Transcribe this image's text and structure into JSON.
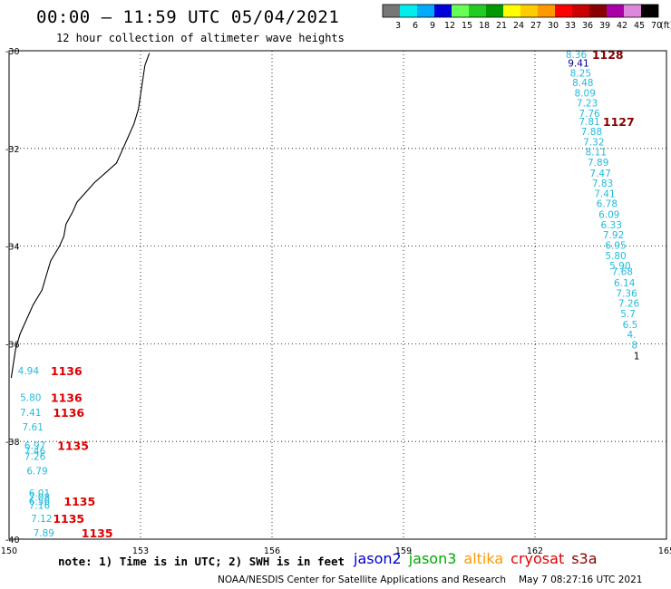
{
  "header": {
    "title": "00:00 – 11:59 UTC 05/04/2021",
    "subtitle": "12 hour collection of altimeter wave heights"
  },
  "colorbar": {
    "unit_label": "(ft)",
    "bins": [
      {
        "label": "3",
        "color": "#777777"
      },
      {
        "label": "6",
        "color": "#00eeee"
      },
      {
        "label": "9",
        "color": "#00aaff"
      },
      {
        "label": "12",
        "color": "#0000dd"
      },
      {
        "label": "15",
        "color": "#66ff55"
      },
      {
        "label": "18",
        "color": "#22cc22"
      },
      {
        "label": "21",
        "color": "#009900"
      },
      {
        "label": "24",
        "color": "#ffff00"
      },
      {
        "label": "27",
        "color": "#ffcc00"
      },
      {
        "label": "30",
        "color": "#ff9900"
      },
      {
        "label": "33",
        "color": "#ff0000"
      },
      {
        "label": "36",
        "color": "#cc0000"
      },
      {
        "label": "39",
        "color": "#880000"
      },
      {
        "label": "42",
        "color": "#aa00aa"
      },
      {
        "label": "45",
        "color": "#dd88dd"
      },
      {
        "label": "70",
        "color": "#000000"
      }
    ]
  },
  "axes": {
    "lon_ticks": [
      "150",
      "153",
      "156",
      "159",
      "162",
      "165"
    ],
    "lat_ticks": [
      "-30",
      "-32",
      "-34",
      "-36",
      "-38",
      "-40"
    ],
    "lon_range": [
      150,
      165
    ],
    "lat_range": [
      -30,
      -40
    ]
  },
  "tracks": {
    "east": {
      "color": "#22bbdd",
      "points": [
        {
          "lat": -30.07,
          "lon": 162.7,
          "v": "8.36"
        },
        {
          "lat": -30.25,
          "lon": 162.75,
          "v": "9.41",
          "color": "#000099"
        },
        {
          "lat": -30.45,
          "lon": 162.8,
          "v": "8.25"
        },
        {
          "lat": -30.65,
          "lon": 162.85,
          "v": "8.48"
        },
        {
          "lat": -30.86,
          "lon": 162.9,
          "v": "8.09"
        },
        {
          "lat": -31.07,
          "lon": 162.95,
          "v": "7.23"
        },
        {
          "lat": -31.28,
          "lon": 163.0,
          "v": "7.76"
        },
        {
          "lat": -31.45,
          "lon": 163.0,
          "v": "7.81"
        },
        {
          "lat": -31.65,
          "lon": 163.05,
          "v": "7.88"
        },
        {
          "lat": -31.86,
          "lon": 163.1,
          "v": "7.32"
        },
        {
          "lat": -32.07,
          "lon": 163.15,
          "v": "8.11"
        },
        {
          "lat": -32.28,
          "lon": 163.2,
          "v": "7.89"
        },
        {
          "lat": -32.5,
          "lon": 163.25,
          "v": "7.47"
        },
        {
          "lat": -32.71,
          "lon": 163.3,
          "v": "7.83"
        },
        {
          "lat": -32.92,
          "lon": 163.35,
          "v": "7.41"
        },
        {
          "lat": -33.13,
          "lon": 163.4,
          "v": "6.78"
        },
        {
          "lat": -33.35,
          "lon": 163.45,
          "v": "6.09"
        },
        {
          "lat": -33.56,
          "lon": 163.5,
          "v": "6.33"
        },
        {
          "lat": -33.77,
          "lon": 163.55,
          "v": "7.92"
        },
        {
          "lat": -33.98,
          "lon": 163.6,
          "v": "6.95"
        },
        {
          "lat": -34.19,
          "lon": 163.6,
          "v": "5.80"
        },
        {
          "lat": -34.4,
          "lon": 163.7,
          "v": "5.90"
        },
        {
          "lat": -34.52,
          "lon": 163.75,
          "v": "7.68"
        },
        {
          "lat": -34.75,
          "lon": 163.8,
          "v": "6.14"
        },
        {
          "lat": -34.96,
          "lon": 163.85,
          "v": "7.36"
        },
        {
          "lat": -35.17,
          "lon": 163.9,
          "v": "7.26"
        },
        {
          "lat": -35.38,
          "lon": 163.95,
          "v": "5.7"
        },
        {
          "lat": -35.6,
          "lon": 164.0,
          "v": "6.5"
        },
        {
          "lat": -35.81,
          "lon": 164.1,
          "v": "4."
        },
        {
          "lat": -36.02,
          "lon": 164.2,
          "v": "8"
        },
        {
          "lat": -36.24,
          "lon": 164.25,
          "v": "1",
          "color": "#000000"
        }
      ],
      "time_labels": [
        {
          "lat": -30.07,
          "lon": 163.3,
          "v": "1128",
          "color": "#880000"
        },
        {
          "lat": -31.45,
          "lon": 163.55,
          "v": "1127",
          "color": "#880000"
        }
      ]
    },
    "west": {
      "color": "#22bbdd",
      "points": [
        {
          "lat": -36.55,
          "lon": 150.2,
          "v": "4.94"
        },
        {
          "lat": -37.1,
          "lon": 150.25,
          "v": "5.80"
        },
        {
          "lat": -37.4,
          "lon": 150.25,
          "v": "7.41"
        },
        {
          "lat": -37.7,
          "lon": 150.3,
          "v": "7.61"
        },
        {
          "lat": -38.08,
          "lon": 150.35,
          "v": "6.97"
        },
        {
          "lat": -38.19,
          "lon": 150.35,
          "v": "7.46"
        },
        {
          "lat": -38.3,
          "lon": 150.35,
          "v": "7.26"
        },
        {
          "lat": -38.6,
          "lon": 150.4,
          "v": "6.79"
        },
        {
          "lat": -39.05,
          "lon": 150.45,
          "v": "6.01"
        },
        {
          "lat": -39.14,
          "lon": 150.45,
          "v": "7.08"
        },
        {
          "lat": -39.22,
          "lon": 150.45,
          "v": "6.56"
        },
        {
          "lat": -39.3,
          "lon": 150.45,
          "v": "7.16"
        },
        {
          "lat": -39.57,
          "lon": 150.5,
          "v": "7.12"
        },
        {
          "lat": -39.87,
          "lon": 150.55,
          "v": "7.89"
        }
      ],
      "time_labels": [
        {
          "lat": -36.55,
          "lon": 150.95,
          "v": "1136",
          "color": "#dd0000"
        },
        {
          "lat": -37.1,
          "lon": 150.95,
          "v": "1136",
          "color": "#dd0000"
        },
        {
          "lat": -37.4,
          "lon": 151.0,
          "v": "1136",
          "color": "#dd0000"
        },
        {
          "lat": -38.08,
          "lon": 151.1,
          "v": "1135",
          "color": "#dd0000"
        },
        {
          "lat": -39.22,
          "lon": 151.25,
          "v": "1135",
          "color": "#dd0000"
        },
        {
          "lat": -39.57,
          "lon": 151.0,
          "v": "1135",
          "color": "#dd0000"
        },
        {
          "lat": -39.87,
          "lon": 151.65,
          "v": "1135",
          "color": "#dd0000"
        }
      ]
    }
  },
  "coastline": [
    [
      -30.05,
      153.2
    ],
    [
      -30.3,
      153.1
    ],
    [
      -30.6,
      153.05
    ],
    [
      -30.9,
      153.0
    ],
    [
      -31.2,
      152.95
    ],
    [
      -31.5,
      152.85
    ],
    [
      -31.8,
      152.7
    ],
    [
      -32.1,
      152.55
    ],
    [
      -32.3,
      152.45
    ],
    [
      -32.5,
      152.2
    ],
    [
      -32.7,
      151.95
    ],
    [
      -32.9,
      151.75
    ],
    [
      -33.1,
      151.55
    ],
    [
      -33.3,
      151.45
    ],
    [
      -33.55,
      151.3
    ],
    [
      -33.8,
      151.25
    ],
    [
      -34.0,
      151.15
    ],
    [
      -34.3,
      150.95
    ],
    [
      -34.6,
      150.85
    ],
    [
      -34.9,
      150.75
    ],
    [
      -35.2,
      150.55
    ],
    [
      -35.5,
      150.4
    ],
    [
      -35.8,
      150.25
    ],
    [
      -36.1,
      150.15
    ],
    [
      -36.4,
      150.1
    ],
    [
      -36.7,
      150.05
    ]
  ],
  "footer": {
    "note": "note: 1) Time is in UTC; 2) SWH is in feet",
    "satellites": [
      {
        "label": "jason2",
        "color": "#0000cc"
      },
      {
        "label": "jason3",
        "color": "#00aa00"
      },
      {
        "label": "altika",
        "color": "#ff9900"
      },
      {
        "label": "cryosat",
        "color": "#dd0000"
      },
      {
        "label": "s3a",
        "color": "#880000"
      }
    ],
    "credit": "NOAA/NESDIS Center for Satellite Applications and Research",
    "timestamp": "May  7 08:27:16 UTC 2021"
  }
}
